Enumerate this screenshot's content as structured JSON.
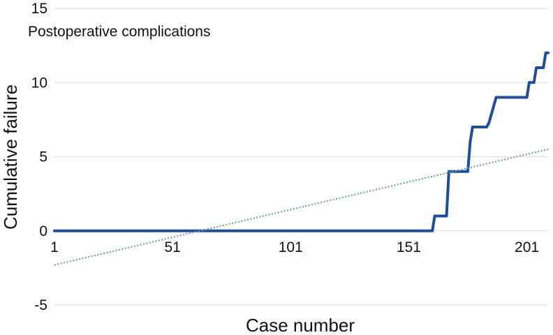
{
  "chart_data": {
    "type": "line",
    "xlabel": "Case number",
    "ylabel": "Cumulative failure",
    "annotation": "Postoperative complications",
    "xlim": [
      1,
      210
    ],
    "ylim": [
      -5,
      15
    ],
    "x_ticks": [
      1,
      51,
      101,
      151,
      201
    ],
    "y_ticks": [
      -5,
      0,
      5,
      10,
      15
    ],
    "grid": "horizontal",
    "series": [
      {
        "style": "solid",
        "color": "#1f4e97",
        "points": [
          [
            1,
            0
          ],
          [
            161,
            0
          ],
          [
            162,
            1
          ],
          [
            167,
            1
          ],
          [
            168,
            4
          ],
          [
            176,
            4
          ],
          [
            177,
            6
          ],
          [
            178,
            7
          ],
          [
            184,
            7
          ],
          [
            185,
            7.3
          ],
          [
            188,
            9
          ],
          [
            201,
            9
          ],
          [
            202,
            10
          ],
          [
            204,
            10
          ],
          [
            205,
            11
          ],
          [
            208,
            11
          ],
          [
            209,
            12
          ],
          [
            210,
            12
          ]
        ]
      },
      {
        "style": "dotted",
        "color": "#6d9cc4",
        "points": [
          [
            1,
            -2.3
          ],
          [
            210,
            5.5
          ]
        ]
      }
    ]
  }
}
